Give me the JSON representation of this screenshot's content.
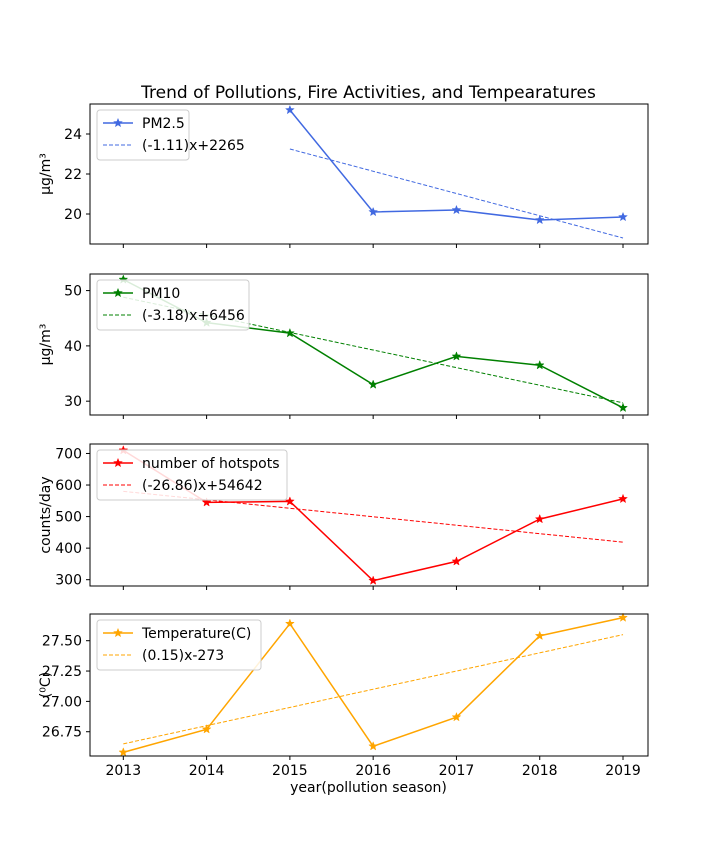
{
  "chart_data": {
    "type": "line",
    "title": "Trend of Pollutions, Fire Activities, and Tempearatures",
    "xlabel": "year(pollution season)",
    "x_ticks": [
      2013,
      2014,
      2015,
      2016,
      2017,
      2018,
      2019
    ],
    "xlim": [
      2012.6,
      2019.3
    ],
    "grid": false,
    "legend_position": "upper-left",
    "panels": [
      {
        "ylabel": "μg/m³",
        "ylim": [
          18.5,
          25.5
        ],
        "yticks": [
          20,
          22,
          24
        ],
        "ytick_labels": [
          "20",
          "22",
          "24"
        ],
        "color": "#4169e1",
        "series": {
          "name": "PM2.5",
          "x": [
            2015,
            2016,
            2017,
            2018,
            2019
          ],
          "y": [
            25.2,
            20.1,
            20.2,
            19.7,
            19.85
          ]
        },
        "trend": {
          "name": "(-1.11)x+2265",
          "x": [
            2015,
            2019
          ],
          "y": [
            23.25,
            18.8
          ]
        }
      },
      {
        "ylabel": "μg/m³",
        "ylim": [
          27.5,
          53
        ],
        "yticks": [
          30,
          40,
          50
        ],
        "ytick_labels": [
          "30",
          "40",
          "50"
        ],
        "color": "#008000",
        "series": {
          "name": "PM10",
          "x": [
            2013,
            2014,
            2015,
            2016,
            2017,
            2018,
            2019
          ],
          "y": [
            52.0,
            44.2,
            42.3,
            33.0,
            38.1,
            36.5,
            28.8
          ]
        },
        "trend": {
          "name": "(-3.18)x+6456",
          "x": [
            2013,
            2019
          ],
          "y": [
            48.8,
            29.7
          ]
        }
      },
      {
        "ylabel": "counts/day",
        "ylim": [
          280,
          730
        ],
        "yticks": [
          300,
          400,
          500,
          600,
          700
        ],
        "ytick_labels": [
          "300",
          "400",
          "500",
          "600",
          "700"
        ],
        "color": "#ff0000",
        "series": {
          "name": "number of hotspots",
          "x": [
            2013,
            2014,
            2015,
            2016,
            2017,
            2018,
            2019
          ],
          "y": [
            710,
            545,
            548,
            297,
            358,
            492,
            556
          ]
        },
        "trend": {
          "name": "(-26.86)x+54642",
          "x": [
            2013,
            2019
          ],
          "y": [
            580,
            419
          ]
        }
      },
      {
        "ylabel": "(⁰C)",
        "ylim": [
          26.55,
          27.72
        ],
        "yticks": [
          26.75,
          27.0,
          27.25,
          27.5
        ],
        "ytick_labels": [
          "26.75",
          "27.00",
          "27.25",
          "27.50"
        ],
        "color": "#ffa500",
        "series": {
          "name": "Temperature(C)",
          "x": [
            2013,
            2014,
            2015,
            2016,
            2017,
            2018,
            2019
          ],
          "y": [
            26.58,
            26.77,
            27.64,
            26.63,
            26.87,
            27.54,
            27.69
          ]
        },
        "trend": {
          "name": "(0.15)x-273",
          "x": [
            2013,
            2019
          ],
          "y": [
            26.65,
            27.55
          ]
        }
      }
    ]
  }
}
